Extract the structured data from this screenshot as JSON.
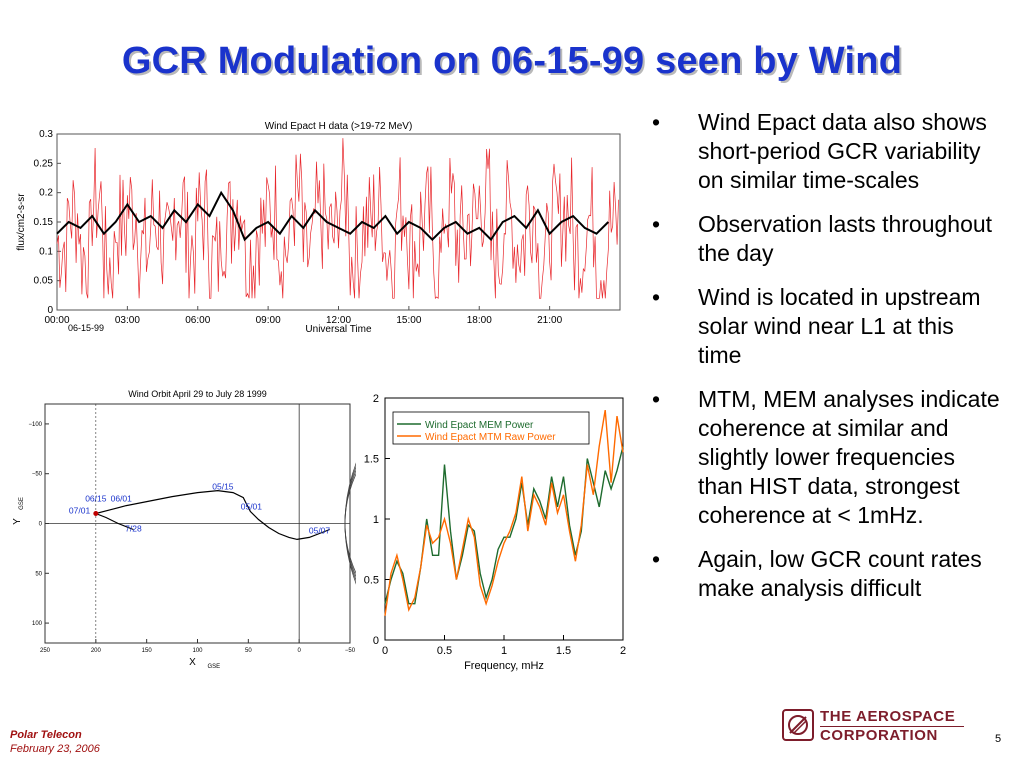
{
  "slide": {
    "title": "GCR Modulation on 06-15-99 seen by Wind",
    "bullets": [
      "Wind Epact data also shows short-period GCR variability on similar time-scales",
      "Observation lasts throughout the day",
      "Wind is located in upstream solar wind near L1 at this time",
      "MTM, MEM analyses indicate coherence at similar and slightly lower frequencies than HIST data, strongest coherence at < 1mHz.",
      "Again, low GCR count rates make analysis difficult"
    ],
    "footer": {
      "title": "Polar Telecon",
      "date": "February 23, 2006"
    },
    "logo": {
      "line1": "THE AEROSPACE",
      "line2": "CORPORATION"
    },
    "page_number": "5"
  },
  "chart_data": [
    {
      "type": "line",
      "title": "Wind Epact H data (>19-72 MeV)",
      "xlabel": "Universal Time",
      "x_date_label": "06-15-99",
      "ylabel": "flux/cm2-s-sr",
      "x_ticks": [
        "00:00",
        "03:00",
        "06:00",
        "09:00",
        "12:00",
        "15:00",
        "18:00",
        "21:00"
      ],
      "y_ticks": [
        "0",
        "0.05",
        "0.1",
        "0.15",
        "0.2",
        "0.25",
        "0.3"
      ],
      "ylim": [
        0,
        0.3
      ],
      "xlim_hours": [
        0,
        24
      ],
      "series": [
        {
          "color": "#e8262b",
          "style": "raw",
          "x_hours": [
            0,
            0.5,
            1,
            1.5,
            2,
            2.5,
            3,
            3.5,
            4,
            4.5,
            5,
            5.5,
            6,
            6.5,
            7,
            7.5,
            8,
            8.5,
            9,
            9.5,
            10,
            10.5,
            11,
            11.5,
            12,
            12.5,
            13,
            13.5,
            14,
            14.5,
            15,
            15.5,
            16,
            16.5,
            17,
            17.5,
            18,
            18.5,
            19,
            19.5,
            20,
            20.5,
            21,
            21.5,
            22,
            22.5,
            23,
            23.5
          ],
          "values": [
            0.12,
            0.22,
            0.08,
            0.26,
            0.05,
            0.18,
            0.24,
            0.09,
            0.2,
            0.07,
            0.25,
            0.11,
            0.21,
            0.06,
            0.19,
            0.27,
            0.08,
            0.17,
            0.23,
            0.1,
            0.26,
            0.07,
            0.2,
            0.14,
            0.28,
            0.06,
            0.18,
            0.22,
            0.09,
            0.25,
            0.11,
            0.2,
            0.05,
            0.24,
            0.13,
            0.19,
            0.27,
            0.08,
            0.21,
            0.12,
            0.25,
            0.07,
            0.19,
            0.23,
            0.1,
            0.2,
            0.06,
            0.17
          ]
        },
        {
          "color": "#000000",
          "style": "smoothed",
          "x_hours": [
            0,
            0.5,
            1,
            1.5,
            2,
            2.5,
            3,
            3.5,
            4,
            4.5,
            5,
            5.5,
            6,
            6.5,
            7,
            7.5,
            8,
            8.5,
            9,
            9.5,
            10,
            10.5,
            11,
            11.5,
            12,
            12.5,
            13,
            13.5,
            14,
            14.5,
            15,
            15.5,
            16,
            16.5,
            17,
            17.5,
            18,
            18.5,
            19,
            19.5,
            20,
            20.5,
            21,
            21.5,
            22,
            22.5,
            23,
            23.5
          ],
          "values": [
            0.13,
            0.15,
            0.14,
            0.16,
            0.13,
            0.15,
            0.18,
            0.15,
            0.16,
            0.14,
            0.17,
            0.15,
            0.18,
            0.16,
            0.2,
            0.17,
            0.12,
            0.14,
            0.15,
            0.13,
            0.16,
            0.14,
            0.17,
            0.15,
            0.14,
            0.13,
            0.15,
            0.14,
            0.16,
            0.13,
            0.15,
            0.14,
            0.12,
            0.14,
            0.15,
            0.13,
            0.14,
            0.12,
            0.15,
            0.16,
            0.14,
            0.17,
            0.13,
            0.15,
            0.16,
            0.14,
            0.13,
            0.15
          ]
        }
      ]
    },
    {
      "type": "line",
      "title": "Wind Orbit April 29 to July 28 1999",
      "xlabel": "X",
      "xlabel_subscript": "GSE",
      "ylabel": "Y",
      "ylabel_subscript": "GSE",
      "x_ticks": [
        "250",
        "200",
        "150",
        "100",
        "50",
        "0",
        "−50"
      ],
      "y_ticks": [
        "−100",
        "−50",
        "0",
        "50",
        "100"
      ],
      "xlim": [
        250,
        -50
      ],
      "ylim": [
        -120,
        120
      ],
      "annotations": [
        {
          "text": "06/15",
          "x": 200,
          "y": -22
        },
        {
          "text": "06/01",
          "x": 175,
          "y": -22
        },
        {
          "text": "07/01",
          "x": 216,
          "y": -10
        },
        {
          "text": "05/15",
          "x": 75,
          "y": -34
        },
        {
          "text": "05/01",
          "x": 47,
          "y": -14
        },
        {
          "text": "7/28",
          "x": 163,
          "y": 8
        },
        {
          "text": "05/07",
          "x": -20,
          "y": 10
        }
      ],
      "series": [
        {
          "color": "#000000",
          "x": [
            163,
            178,
            190,
            200,
            200,
            185,
            170,
            150,
            125,
            100,
            80,
            65,
            55,
            52,
            48,
            40,
            30,
            20,
            10,
            2,
            -10,
            -20,
            -30
          ],
          "y": [
            6,
            0,
            -6,
            -10,
            -10,
            -14,
            -18,
            -22,
            -27,
            -31,
            -33,
            -31,
            -26,
            -20,
            -12,
            -4,
            4,
            10,
            14,
            16,
            14,
            10,
            6
          ]
        }
      ]
    },
    {
      "type": "line",
      "xlabel": "Frequency, mHz",
      "ylabel": "",
      "x_ticks": [
        "0",
        "0.5",
        "1",
        "1.5",
        "2"
      ],
      "y_ticks": [
        "0",
        "0.5",
        "1",
        "1.5",
        "2"
      ],
      "xlim": [
        0,
        2
      ],
      "ylim": [
        0,
        2
      ],
      "legend_position": "top-left",
      "series": [
        {
          "name": "Wind Epact MEM Power",
          "color": "#1e6b2e",
          "x": [
            0,
            0.05,
            0.1,
            0.15,
            0.2,
            0.25,
            0.3,
            0.35,
            0.4,
            0.45,
            0.5,
            0.55,
            0.6,
            0.65,
            0.7,
            0.75,
            0.8,
            0.85,
            0.9,
            0.95,
            1,
            1.05,
            1.1,
            1.15,
            1.2,
            1.25,
            1.3,
            1.35,
            1.4,
            1.45,
            1.5,
            1.55,
            1.6,
            1.65,
            1.7,
            1.75,
            1.8,
            1.85,
            1.9,
            1.95,
            2
          ],
          "values": [
            0.3,
            0.5,
            0.65,
            0.55,
            0.3,
            0.3,
            0.6,
            1.0,
            0.7,
            0.7,
            1.45,
            0.9,
            0.5,
            0.7,
            0.95,
            0.9,
            0.55,
            0.35,
            0.5,
            0.75,
            0.85,
            0.85,
            1.0,
            1.3,
            0.95,
            1.25,
            1.15,
            1.0,
            1.35,
            1.1,
            1.35,
            0.95,
            0.7,
            0.9,
            1.5,
            1.3,
            1.1,
            1.4,
            1.25,
            1.4,
            1.6
          ]
        },
        {
          "name": "Wind Epact MTM Raw Power",
          "color": "#ff6a00",
          "x": [
            0,
            0.05,
            0.1,
            0.15,
            0.2,
            0.25,
            0.3,
            0.35,
            0.4,
            0.45,
            0.5,
            0.55,
            0.6,
            0.65,
            0.7,
            0.75,
            0.8,
            0.85,
            0.9,
            0.95,
            1,
            1.05,
            1.1,
            1.15,
            1.2,
            1.25,
            1.3,
            1.35,
            1.4,
            1.45,
            1.5,
            1.55,
            1.6,
            1.65,
            1.7,
            1.75,
            1.8,
            1.85,
            1.9,
            1.95,
            2
          ],
          "values": [
            0.2,
            0.55,
            0.7,
            0.5,
            0.25,
            0.35,
            0.6,
            0.95,
            0.8,
            0.85,
            1.0,
            0.8,
            0.5,
            0.75,
            1.0,
            0.85,
            0.45,
            0.3,
            0.45,
            0.65,
            0.8,
            0.9,
            1.05,
            1.35,
            0.9,
            1.2,
            1.1,
            0.95,
            1.3,
            1.05,
            1.2,
            0.9,
            0.65,
            0.95,
            1.45,
            1.2,
            1.6,
            1.9,
            1.3,
            1.85,
            1.55
          ]
        }
      ]
    }
  ]
}
